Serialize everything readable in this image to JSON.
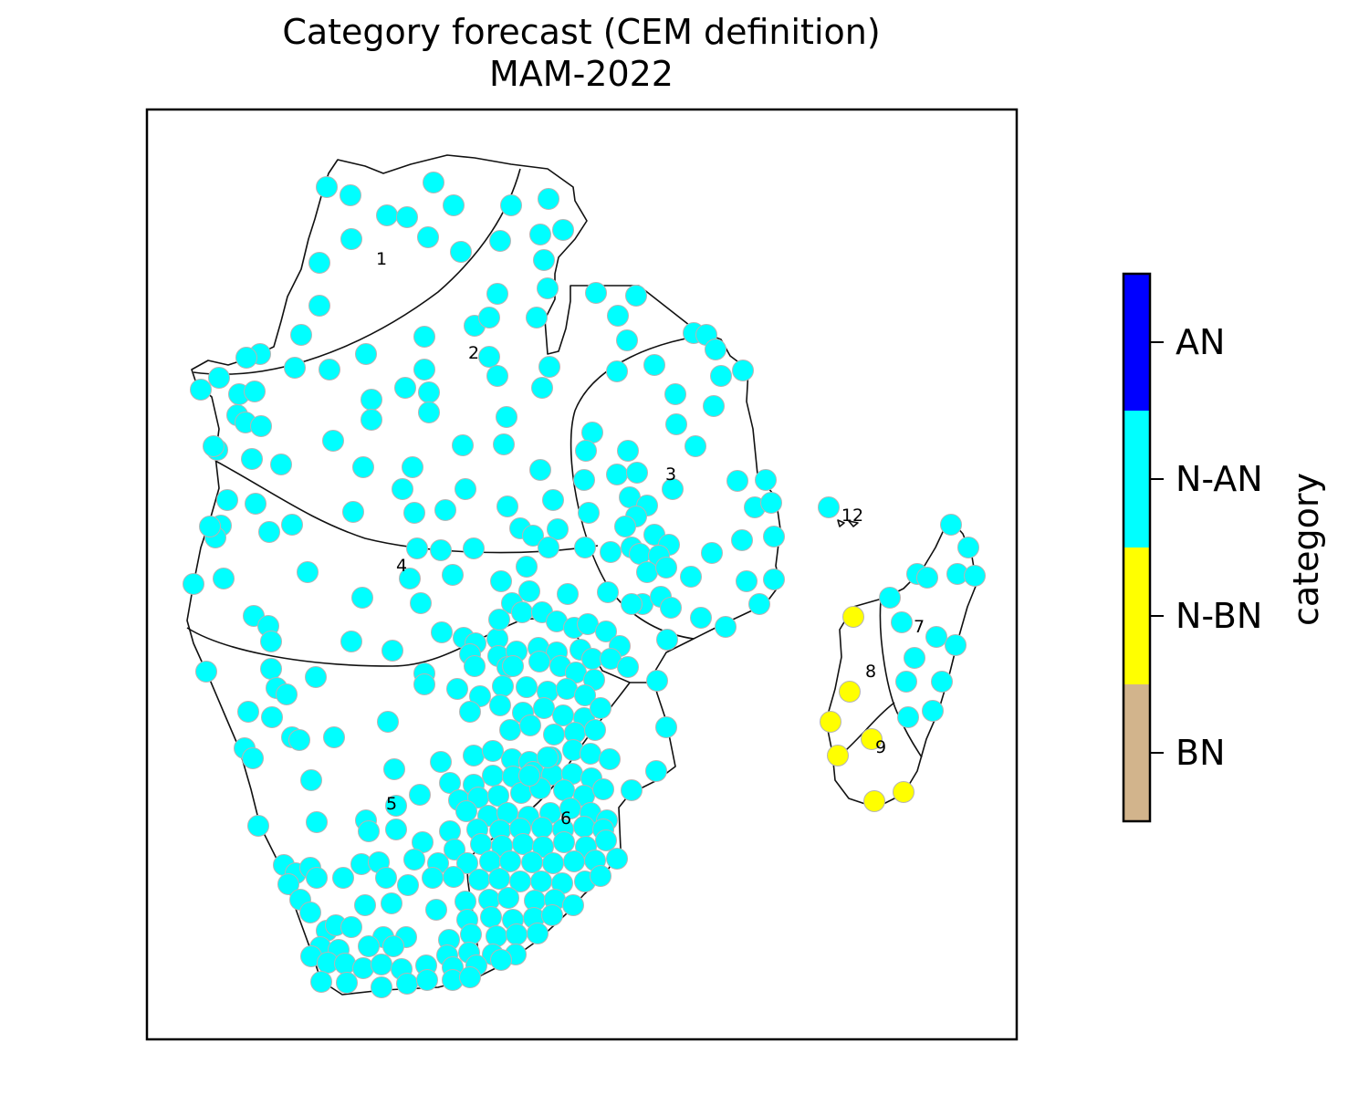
{
  "title": {
    "line1": "Category forecast (CEM definition)",
    "line2": "MAM-2022"
  },
  "colorbar": {
    "axis_label": "category",
    "categories": [
      {
        "label": "BN",
        "color": "#d2b48c"
      },
      {
        "label": "N-BN",
        "color": "#ffff00"
      },
      {
        "label": "N-AN",
        "color": "#00ffff"
      },
      {
        "label": "AN",
        "color": "#0000ff"
      }
    ]
  },
  "regions": [
    "1",
    "2",
    "3",
    "4",
    "5",
    "6",
    "7",
    "8",
    "9",
    "12"
  ],
  "stations": {
    "N-AN_count": "approx. 500 (all mainland stations and NE Madagascar)",
    "N-BN_count": "7 (western and southern Madagascar)",
    "AN_count": "0",
    "BN_count": "0"
  }
}
